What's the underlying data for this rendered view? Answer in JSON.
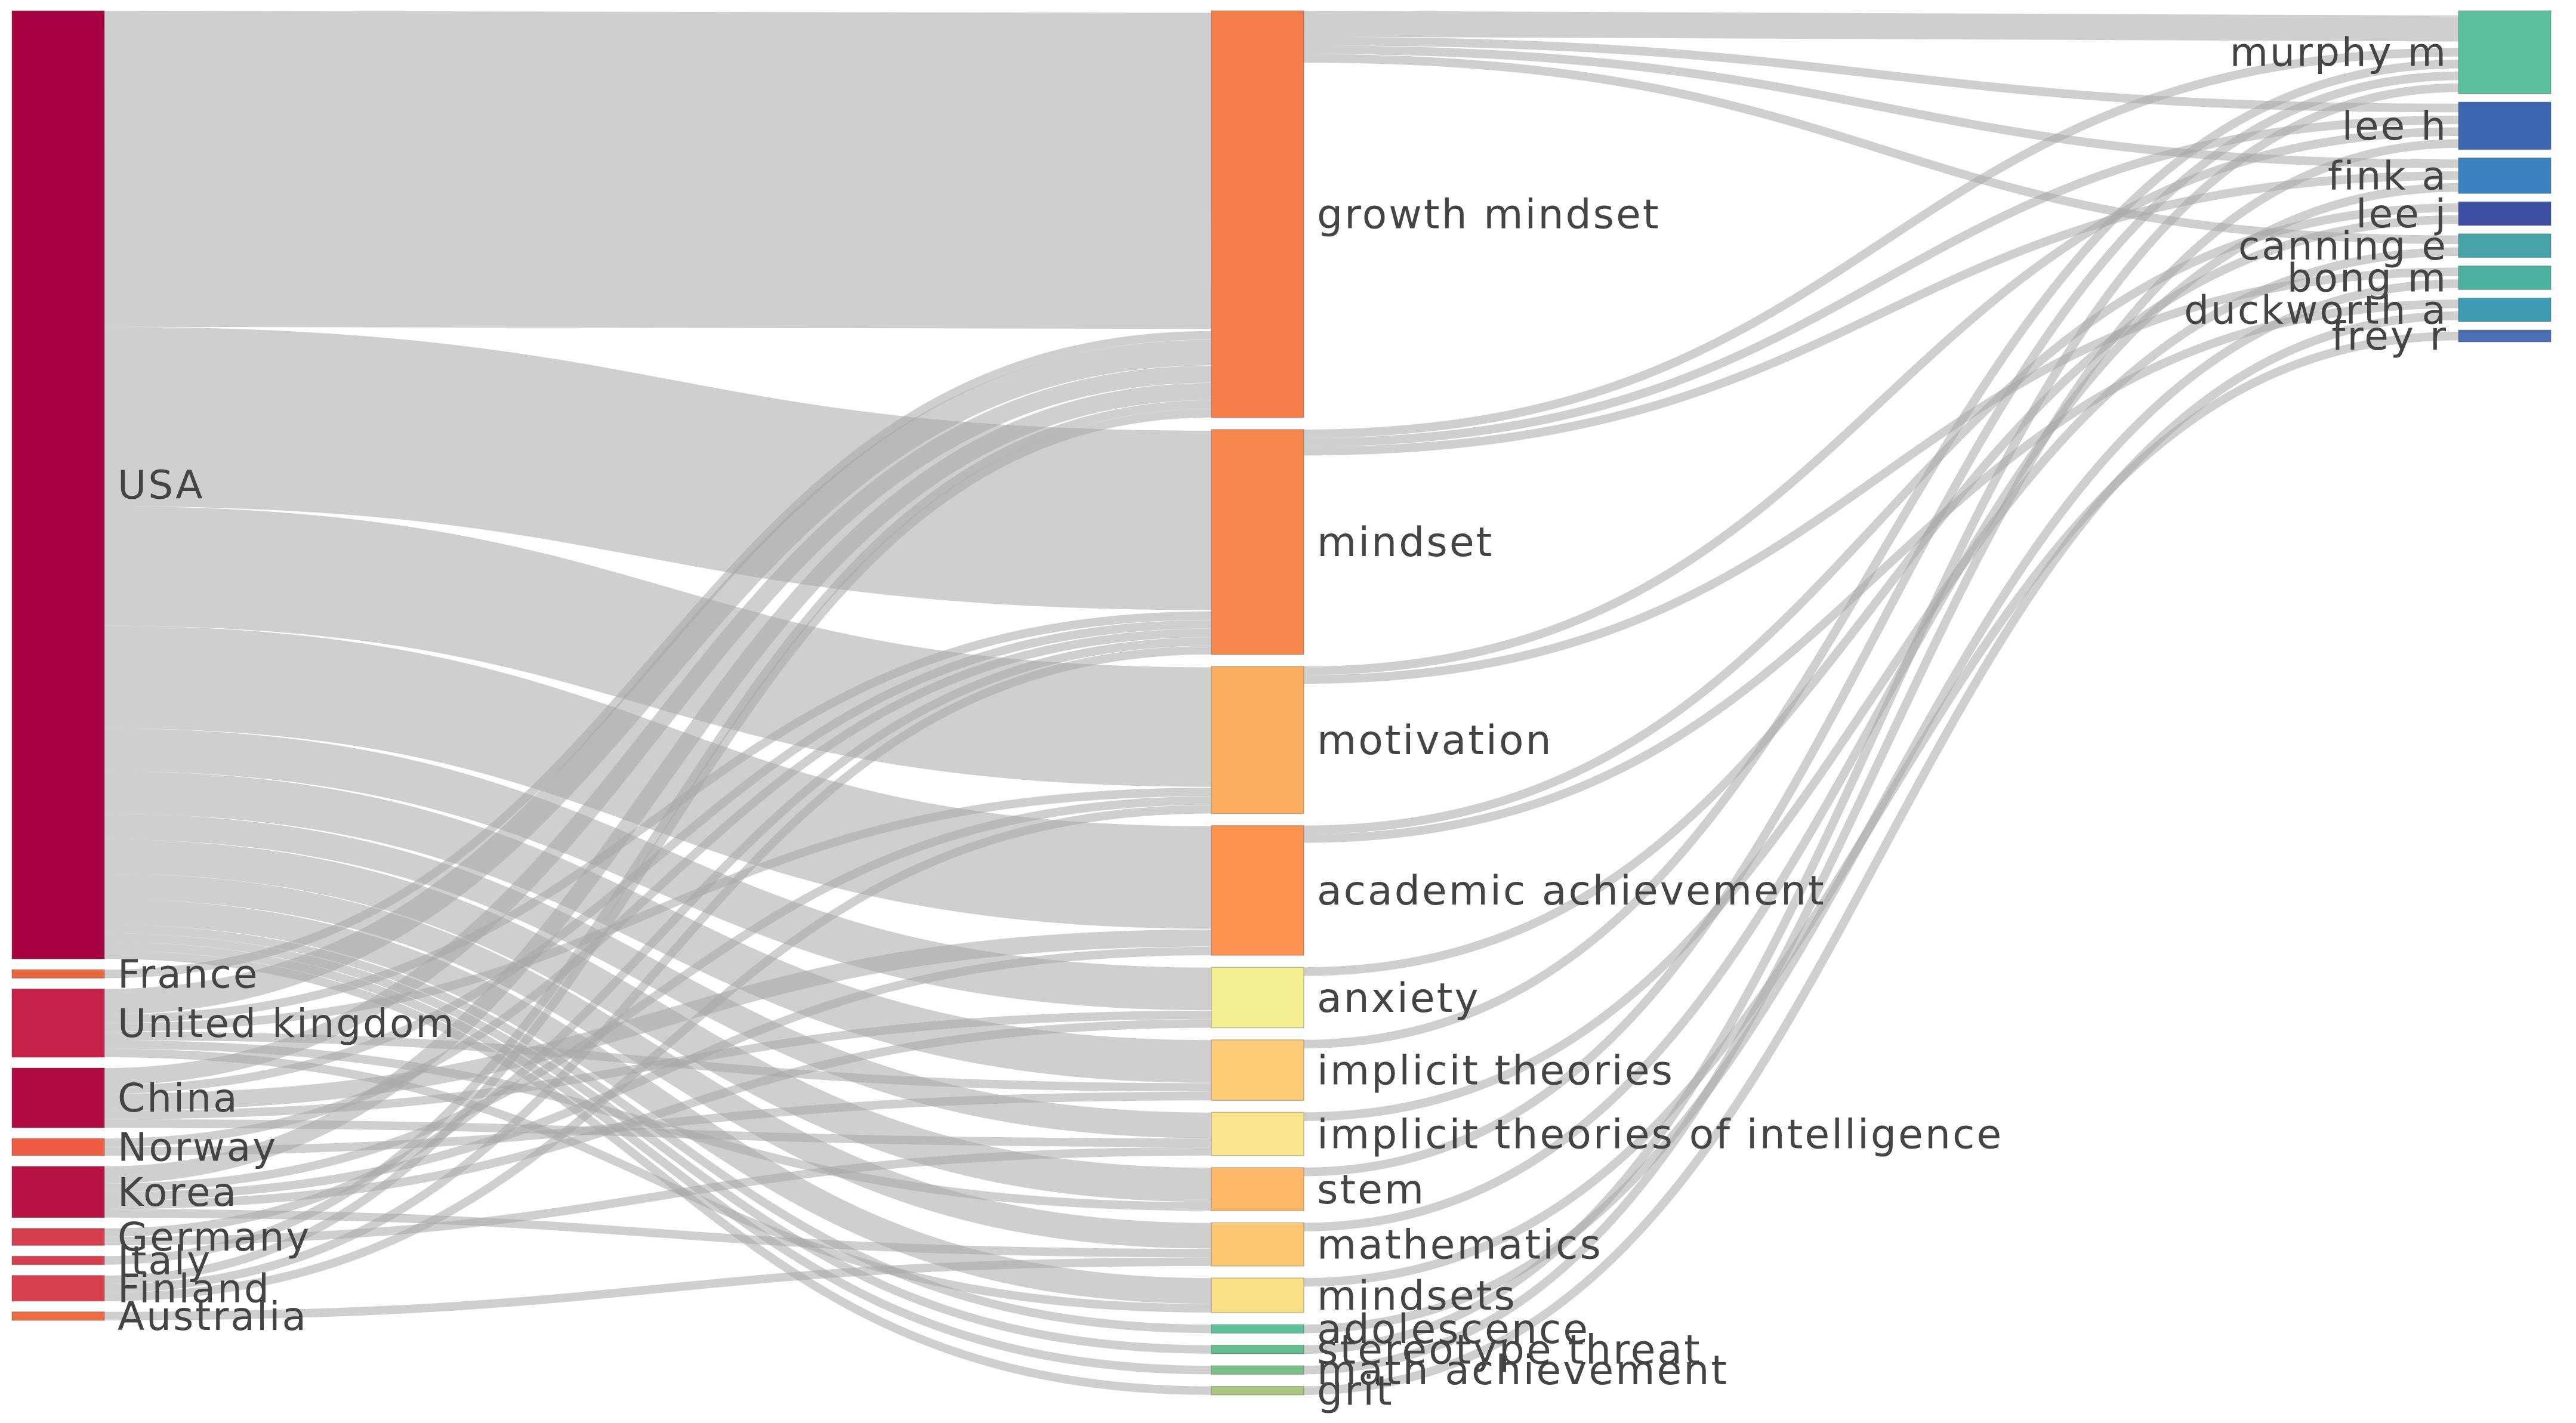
{
  "diagram": {
    "type": "sankey",
    "link_color": "#a8a8a8",
    "columns": [
      {
        "name": "countries",
        "nodes": [
          {
            "id": "usa",
            "label": "USA",
            "color": "#a5003f"
          },
          {
            "id": "france",
            "label": "France",
            "color": "#e7683f"
          },
          {
            "id": "uk",
            "label": "United kingdom",
            "color": "#c62148"
          },
          {
            "id": "china",
            "label": "China",
            "color": "#b10a44"
          },
          {
            "id": "norway",
            "label": "Norway",
            "color": "#ee5c42"
          },
          {
            "id": "korea",
            "label": "Korea",
            "color": "#b61244"
          },
          {
            "id": "germany",
            "label": "Germany",
            "color": "#d53e4f"
          },
          {
            "id": "italy",
            "label": "Italy",
            "color": "#d53e4f"
          },
          {
            "id": "finland",
            "label": "Finland",
            "color": "#d8404e"
          },
          {
            "id": "australia",
            "label": "Australia",
            "color": "#ee6a43"
          }
        ]
      },
      {
        "name": "keywords",
        "nodes": [
          {
            "id": "growth_mindset",
            "label": "growth mindset",
            "color": "#f57d49"
          },
          {
            "id": "mindset",
            "label": "mindset",
            "color": "#f6884d"
          },
          {
            "id": "motivation",
            "label": "motivation",
            "color": "#fdad60"
          },
          {
            "id": "academic_achievement",
            "label": "academic achievement",
            "color": "#f9934f"
          },
          {
            "id": "anxiety",
            "label": "anxiety",
            "color": "#f3ee91"
          },
          {
            "id": "implicit_theories",
            "label": "implicit theories",
            "color": "#fdcc77"
          },
          {
            "id": "implicit_theories_intel",
            "label": "implicit theories of intelligence",
            "color": "#fbe58c"
          },
          {
            "id": "stem",
            "label": "stem",
            "color": "#fdb767"
          },
          {
            "id": "mathematics",
            "label": "mathematics",
            "color": "#fdc671"
          },
          {
            "id": "mindsets",
            "label": "mindsets",
            "color": "#fbdf85"
          },
          {
            "id": "adolescence",
            "label": "adolescence",
            "color": "#5fbf9a"
          },
          {
            "id": "stereotype_threat",
            "label": "stereotype threat",
            "color": "#66bd8f"
          },
          {
            "id": "math_achievement",
            "label": "math achievement",
            "color": "#7fbf8a"
          },
          {
            "id": "grit",
            "label": "grit",
            "color": "#a9c77f"
          }
        ]
      },
      {
        "name": "authors",
        "nodes": [
          {
            "id": "murphy_m",
            "label": "murphy m",
            "color": "#5bc09f"
          },
          {
            "id": "lee_h",
            "label": "lee h",
            "color": "#3d66b0"
          },
          {
            "id": "fink_a",
            "label": "fink a",
            "color": "#3a83c0"
          },
          {
            "id": "lee_j",
            "label": "lee j",
            "color": "#3f4fa6"
          },
          {
            "id": "canning_e",
            "label": "canning e",
            "color": "#48a3a8"
          },
          {
            "id": "bong_m",
            "label": "bong m",
            "color": "#4ab29d"
          },
          {
            "id": "duckworth_a",
            "label": "duckworth a",
            "color": "#3f9ab3"
          },
          {
            "id": "frey_r",
            "label": "frey r",
            "color": "#4d70b4"
          }
        ]
      }
    ],
    "links": [
      {
        "source": "usa",
        "target": "growth_mindset",
        "value": 37
      },
      {
        "source": "usa",
        "target": "mindset",
        "value": 21
      },
      {
        "source": "usa",
        "target": "motivation",
        "value": 14
      },
      {
        "source": "usa",
        "target": "academic_achievement",
        "value": 12
      },
      {
        "source": "usa",
        "target": "anxiety",
        "value": 5
      },
      {
        "source": "usa",
        "target": "implicit_theories",
        "value": 5
      },
      {
        "source": "usa",
        "target": "implicit_theories_intel",
        "value": 3
      },
      {
        "source": "usa",
        "target": "stem",
        "value": 4
      },
      {
        "source": "usa",
        "target": "mathematics",
        "value": 3
      },
      {
        "source": "usa",
        "target": "mindsets",
        "value": 3
      },
      {
        "source": "usa",
        "target": "adolescence",
        "value": 1
      },
      {
        "source": "usa",
        "target": "stereotype_threat",
        "value": 1
      },
      {
        "source": "usa",
        "target": "math_achievement",
        "value": 1
      },
      {
        "source": "usa",
        "target": "grit",
        "value": 1
      },
      {
        "source": "france",
        "target": "growth_mindset",
        "value": 1
      },
      {
        "source": "uk",
        "target": "growth_mindset",
        "value": 3
      },
      {
        "source": "uk",
        "target": "mindset",
        "value": 1
      },
      {
        "source": "uk",
        "target": "motivation",
        "value": 1
      },
      {
        "source": "uk",
        "target": "implicit_theories",
        "value": 1
      },
      {
        "source": "uk",
        "target": "stem",
        "value": 1
      },
      {
        "source": "uk",
        "target": "mindsets",
        "value": 1
      },
      {
        "source": "china",
        "target": "growth_mindset",
        "value": 2
      },
      {
        "source": "china",
        "target": "mindset",
        "value": 1
      },
      {
        "source": "china",
        "target": "academic_achievement",
        "value": 2
      },
      {
        "source": "china",
        "target": "anxiety",
        "value": 1
      },
      {
        "source": "china",
        "target": "implicit_theories_intel",
        "value": 1
      },
      {
        "source": "norway",
        "target": "mindset",
        "value": 1
      },
      {
        "source": "norway",
        "target": "implicit_theories",
        "value": 1
      },
      {
        "source": "korea",
        "target": "growth_mindset",
        "value": 2
      },
      {
        "source": "korea",
        "target": "motivation",
        "value": 1
      },
      {
        "source": "korea",
        "target": "academic_achievement",
        "value": 1
      },
      {
        "source": "korea",
        "target": "anxiety",
        "value": 1
      },
      {
        "source": "korea",
        "target": "mathematics",
        "value": 1
      },
      {
        "source": "germany",
        "target": "mindset",
        "value": 1
      },
      {
        "source": "germany",
        "target": "implicit_theories_intel",
        "value": 1
      },
      {
        "source": "italy",
        "target": "growth_mindset",
        "value": 1
      },
      {
        "source": "finland",
        "target": "growth_mindset",
        "value": 1
      },
      {
        "source": "finland",
        "target": "mindset",
        "value": 1
      },
      {
        "source": "finland",
        "target": "motivation",
        "value": 1
      },
      {
        "source": "australia",
        "target": "mathematics",
        "value": 1
      },
      {
        "source": "growth_mindset",
        "target": "murphy_m",
        "value": 3
      },
      {
        "source": "growth_mindset",
        "target": "lee_h",
        "value": 1
      },
      {
        "source": "growth_mindset",
        "target": "fink_a",
        "value": 1
      },
      {
        "source": "growth_mindset",
        "target": "canning_e",
        "value": 1
      },
      {
        "source": "mindset",
        "target": "murphy_m",
        "value": 1
      },
      {
        "source": "mindset",
        "target": "lee_h",
        "value": 1
      },
      {
        "source": "mindset",
        "target": "fink_a",
        "value": 1
      },
      {
        "source": "motivation",
        "target": "lee_h",
        "value": 1
      },
      {
        "source": "motivation",
        "target": "bong_m",
        "value": 1
      },
      {
        "source": "academic_achievement",
        "target": "lee_j",
        "value": 1
      },
      {
        "source": "academic_achievement",
        "target": "duckworth_a",
        "value": 1
      },
      {
        "source": "anxiety",
        "target": "lee_j",
        "value": 1
      },
      {
        "source": "implicit_theories",
        "target": "murphy_m",
        "value": 1
      },
      {
        "source": "implicit_theories_intel",
        "target": "canning_e",
        "value": 1
      },
      {
        "source": "stem",
        "target": "murphy_m",
        "value": 1
      },
      {
        "source": "mathematics",
        "target": "fink_a",
        "value": 1
      },
      {
        "source": "mindsets",
        "target": "frey_r",
        "value": 1
      },
      {
        "source": "adolescence",
        "target": "bong_m",
        "value": 1
      },
      {
        "source": "stereotype_threat",
        "target": "murphy_m",
        "value": 1
      },
      {
        "source": "math_achievement",
        "target": "lee_h",
        "value": 1
      },
      {
        "source": "grit",
        "target": "duckworth_a",
        "value": 1
      }
    ]
  }
}
